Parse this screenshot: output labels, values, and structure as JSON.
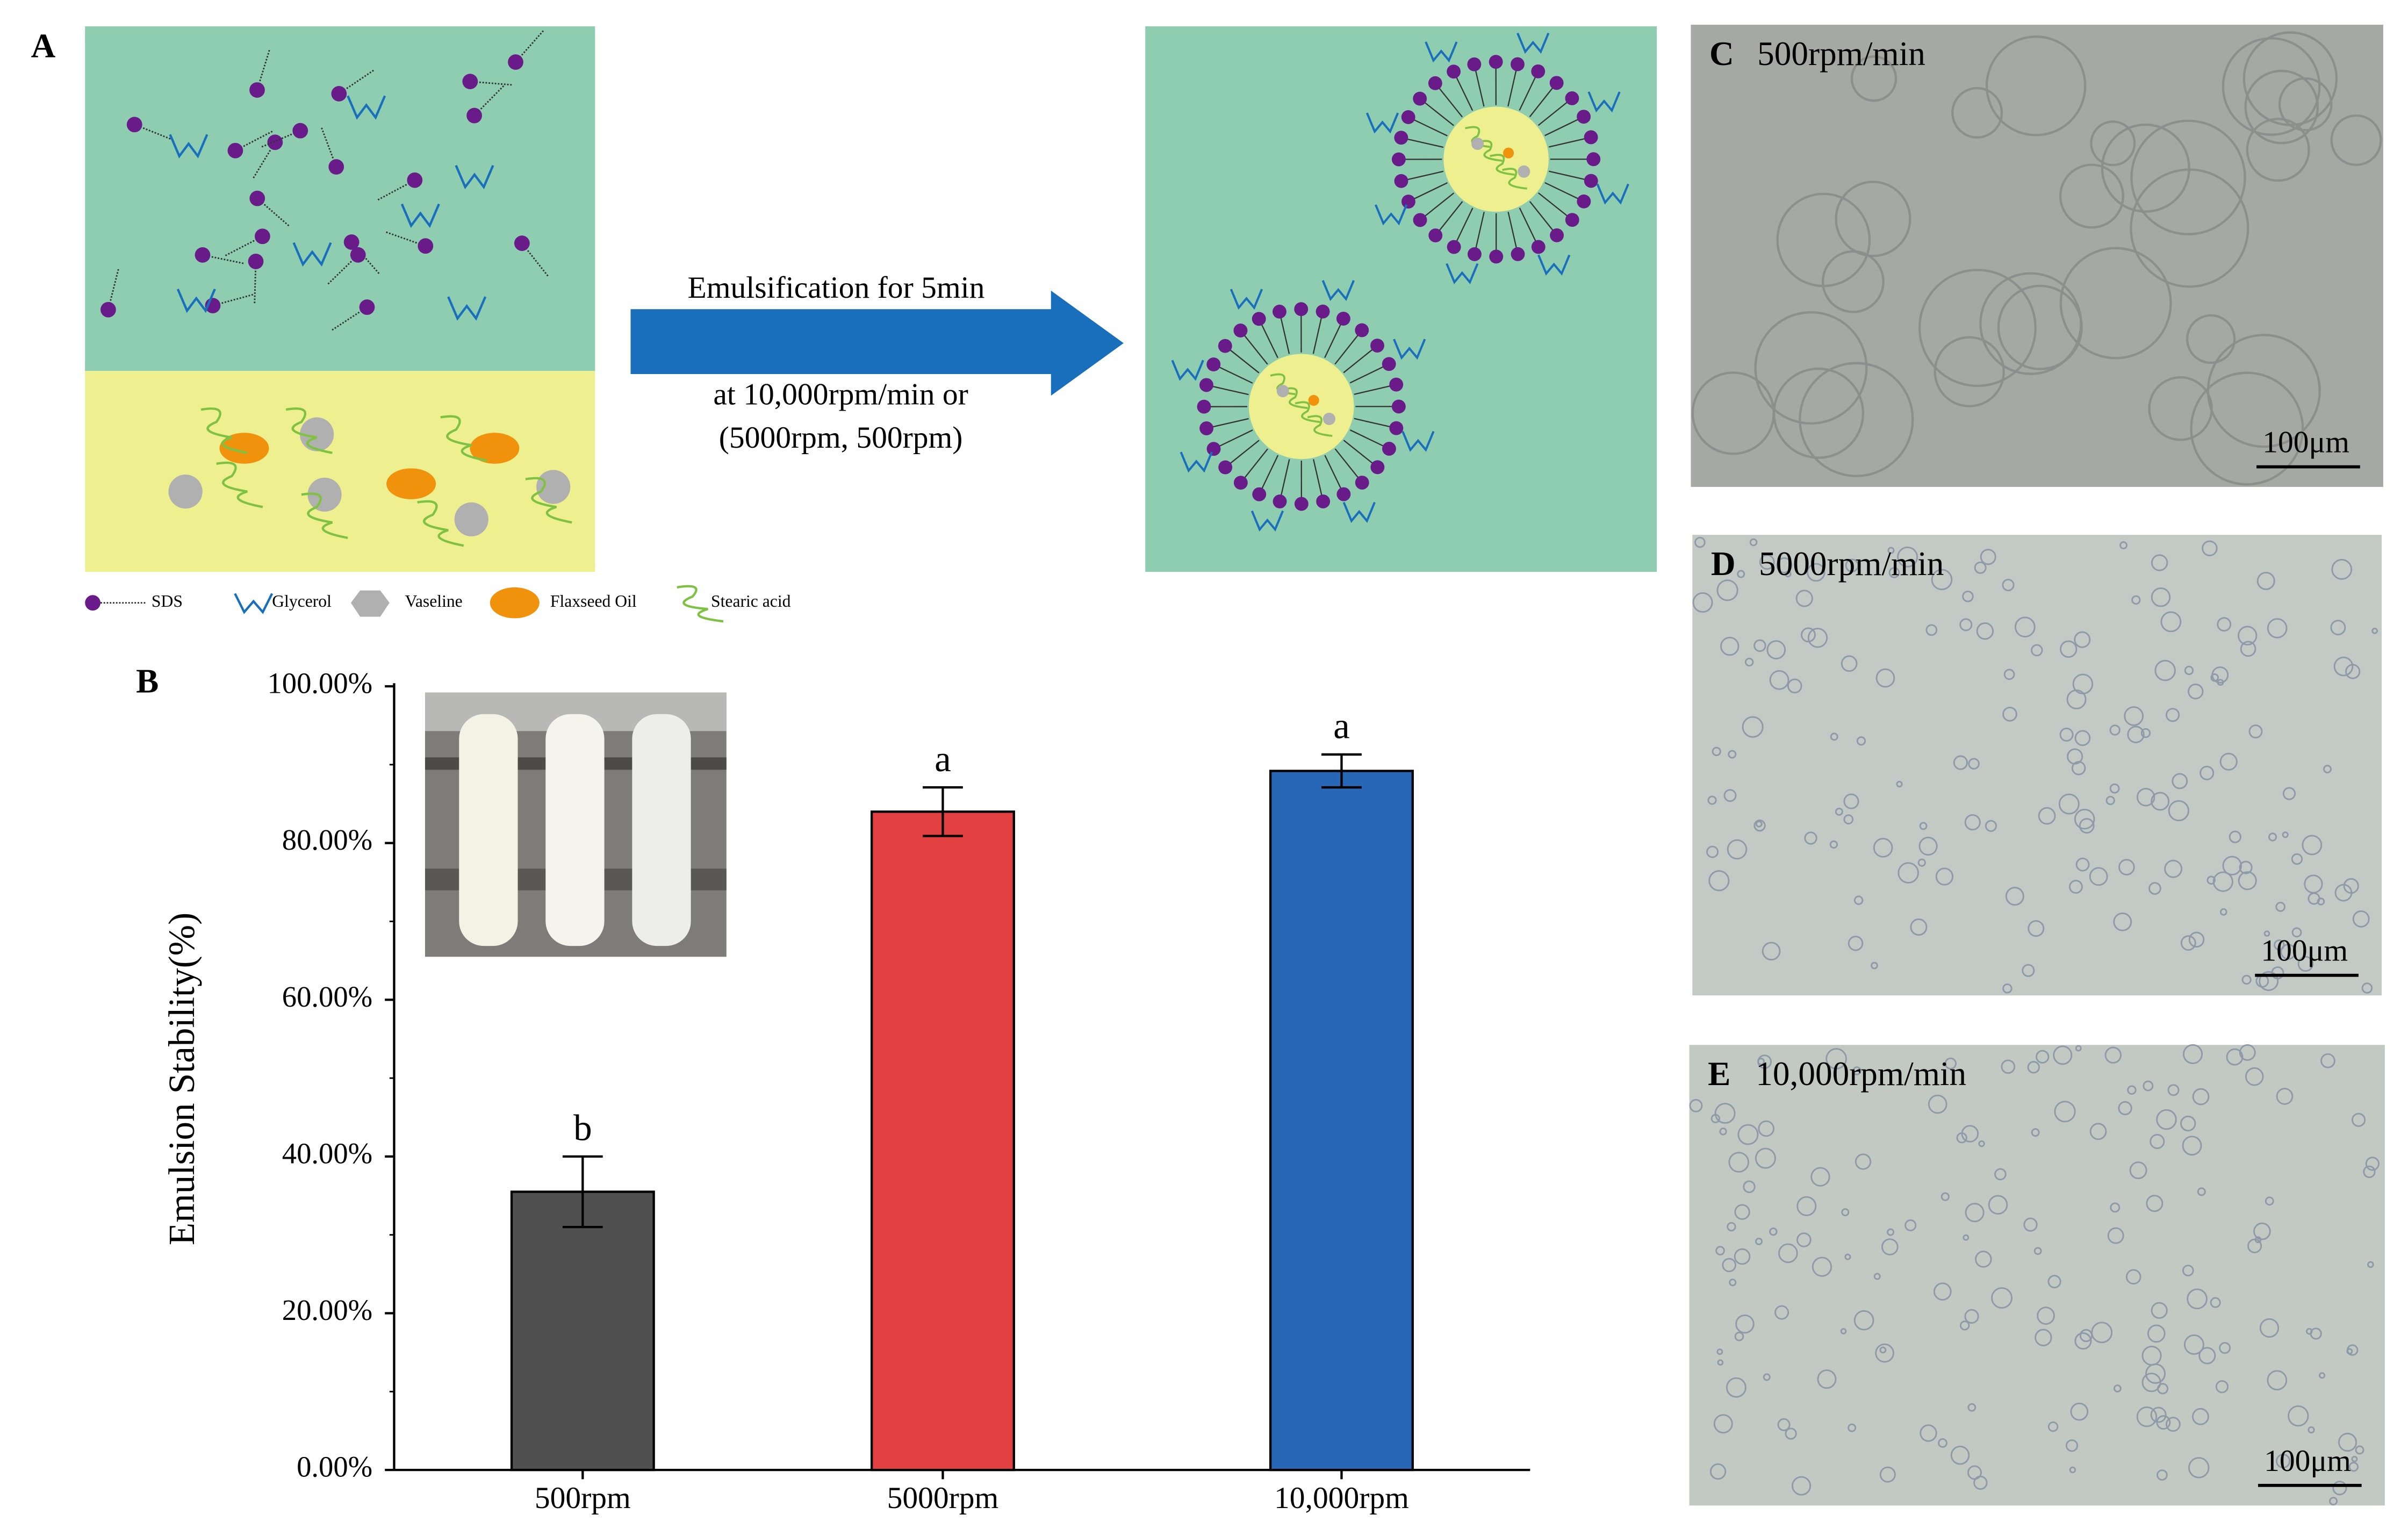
{
  "chart_data": {
    "type": "bar",
    "y_label": "Emulsion Stability(%)",
    "categories": [
      "500rpm",
      "5000rpm",
      "10,000rpm"
    ],
    "values": [
      35.5,
      84,
      89.2
    ],
    "errors": [
      4.5,
      3.1,
      2.1
    ],
    "significance": [
      "b",
      "a",
      "a"
    ],
    "colors": [
      "#505050",
      "#e34141",
      "#2767b5"
    ],
    "ylim": [
      0,
      100
    ],
    "yticks": [
      {
        "value": 0,
        "label": "0.00%"
      },
      {
        "value": 20,
        "label": "20.00%"
      },
      {
        "value": 40,
        "label": "40.00%"
      },
      {
        "value": 60,
        "label": "60.00%"
      },
      {
        "value": 80,
        "label": "80.00%"
      },
      {
        "value": 100,
        "label": "100.00%"
      }
    ]
  },
  "panel_labels": [
    "A",
    "B",
    "C",
    "D",
    "E"
  ],
  "schematic": {
    "arrow_text": [
      "Emulsification for 5min",
      "at 10,000rpm/min or",
      "(5000rpm, 500rpm)"
    ],
    "legend": [
      "SDS",
      "Glycerol",
      "Vaseline",
      "Flaxseed Oil",
      "Stearic acid"
    ]
  },
  "micrographs": [
    {
      "label": "500rpm/min",
      "scale": "100μm"
    },
    {
      "label": "5000rpm/min",
      "scale": "100μm"
    },
    {
      "label": "10,000rpm/min",
      "scale": "100μm"
    }
  ]
}
